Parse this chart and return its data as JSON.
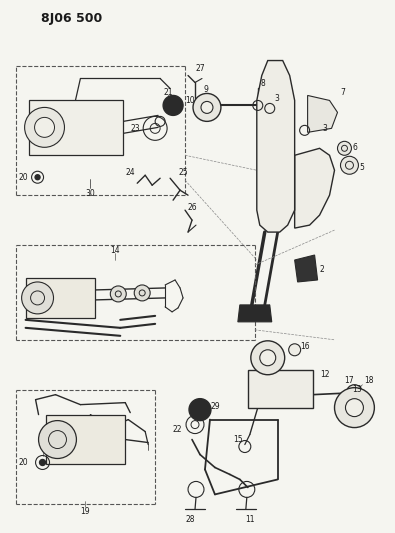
{
  "title": "8J06 500",
  "bg_color": "#f5f5f0",
  "line_color": "#2a2a2a",
  "fig_w": 3.95,
  "fig_h": 5.33,
  "dpi": 100
}
